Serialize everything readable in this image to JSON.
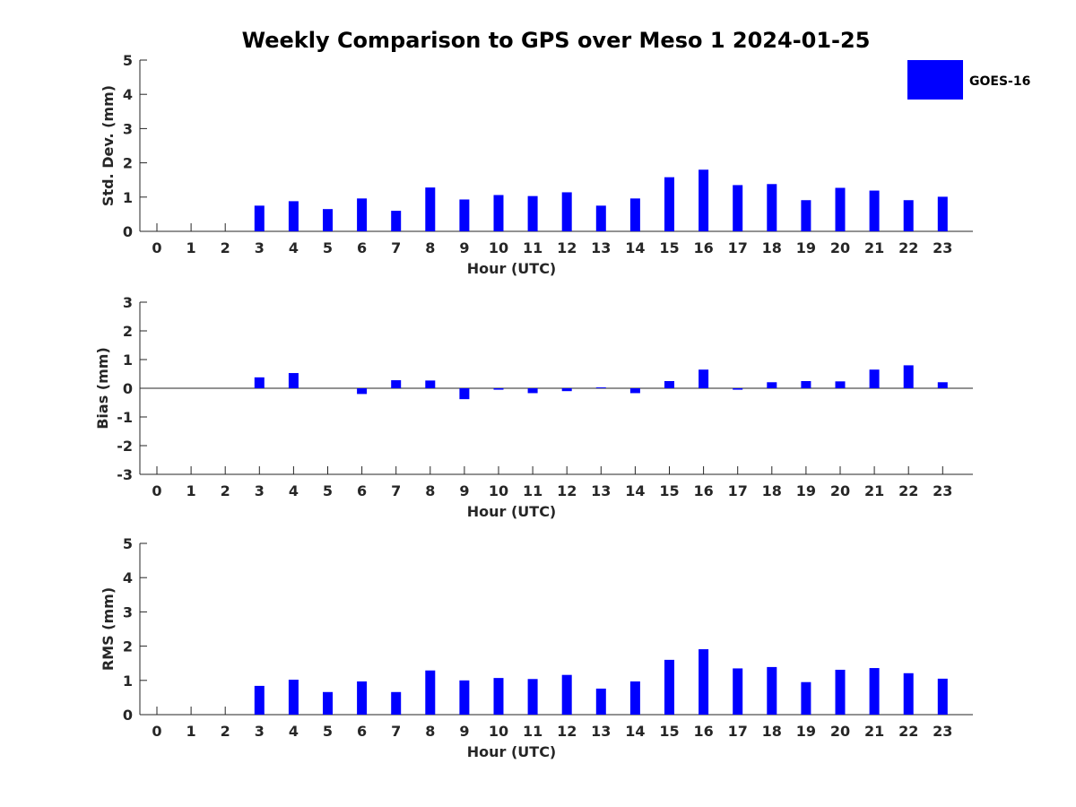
{
  "chart_data": {
    "title": "Weekly Comparison to GPS over Meso 1 2024-01-25",
    "legend": {
      "position": "top-right",
      "entries": [
        "GOES-16"
      ]
    },
    "colors": {
      "bar": "#0000ff",
      "axis": "#262626"
    },
    "categories": [
      "0",
      "1",
      "2",
      "3",
      "4",
      "5",
      "6",
      "7",
      "8",
      "9",
      "10",
      "11",
      "12",
      "13",
      "14",
      "15",
      "16",
      "17",
      "18",
      "19",
      "20",
      "21",
      "22",
      "23"
    ],
    "subplots": [
      {
        "type": "bar",
        "xlabel": "Hour (UTC)",
        "ylabel": "Std. Dev. (mm)",
        "ylim": [
          0,
          5
        ],
        "yticks": [
          "0",
          "1",
          "2",
          "3",
          "4",
          "5"
        ],
        "series": [
          {
            "name": "GOES-16",
            "values": [
              null,
              null,
              null,
              0.75,
              0.88,
              0.65,
              0.96,
              0.6,
              1.28,
              0.93,
              1.06,
              1.03,
              1.14,
              0.75,
              0.96,
              1.58,
              1.8,
              1.35,
              1.38,
              0.91,
              1.27,
              1.19,
              0.91,
              1.01
            ]
          }
        ]
      },
      {
        "type": "bar",
        "xlabel": "Hour (UTC)",
        "ylabel": "Bias (mm)",
        "ylim": [
          -3,
          3
        ],
        "yticks": [
          "-3",
          "-2",
          "-1",
          "0",
          "1",
          "2",
          "3"
        ],
        "series": [
          {
            "name": "GOES-16",
            "values": [
              null,
              null,
              null,
              0.38,
              0.53,
              0.0,
              -0.2,
              0.28,
              0.27,
              -0.38,
              -0.05,
              -0.17,
              -0.1,
              0.03,
              -0.17,
              0.25,
              0.65,
              -0.05,
              0.21,
              0.25,
              0.24,
              0.65,
              0.8,
              0.21
            ]
          }
        ]
      },
      {
        "type": "bar",
        "xlabel": "Hour (UTC)",
        "ylabel": "RMS (mm)",
        "ylim": [
          0,
          5
        ],
        "yticks": [
          "0",
          "1",
          "2",
          "3",
          "4",
          "5"
        ],
        "series": [
          {
            "name": "GOES-16",
            "values": [
              null,
              null,
              null,
              0.84,
              1.02,
              0.66,
              0.97,
              0.66,
              1.29,
              1.0,
              1.07,
              1.04,
              1.16,
              0.76,
              0.97,
              1.6,
              1.91,
              1.35,
              1.39,
              0.95,
              1.31,
              1.36,
              1.21,
              1.05
            ]
          }
        ]
      }
    ]
  }
}
